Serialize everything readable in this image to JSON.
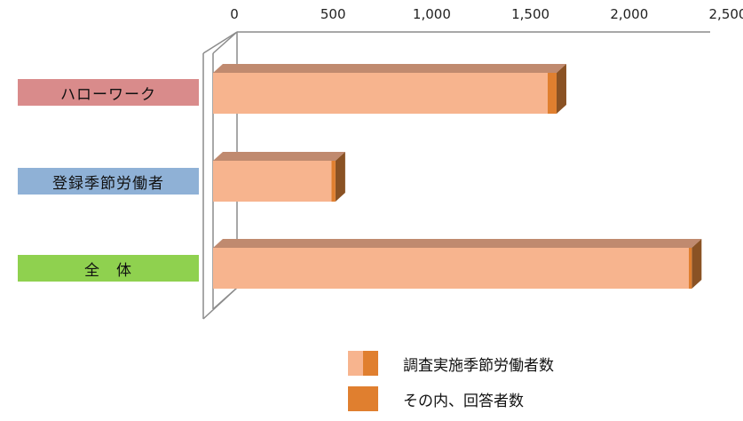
{
  "chart_data": {
    "type": "bar",
    "orientation": "horizontal",
    "style": "3d-overlapped",
    "categories": [
      "ハローワーク",
      "登録季節労働者",
      "全　体"
    ],
    "series": [
      {
        "name": "調査実施季節労働者数",
        "values": [
          1740,
          620,
          2425
        ]
      },
      {
        "name": "その内、回答者数",
        "values": [
          1695,
          600,
          2410
        ]
      }
    ],
    "xlim": [
      0,
      2500
    ],
    "ticks": [
      "0",
      "500",
      "1,000",
      "1,500",
      "2,000",
      "2,500"
    ],
    "tick_values": [
      0,
      500,
      1000,
      1500,
      2000,
      2500
    ],
    "axis_position": "top",
    "grid": false,
    "legend_position": "bottom-center"
  },
  "colors": {
    "category_boxes": [
      "#d98b8b",
      "#8fb1d6",
      "#8fd14f"
    ],
    "series_front": [
      "#f7b48e",
      "#e07f2f"
    ],
    "bar_top": "#c08a6f",
    "bar_side": "#8a5224",
    "axis": "#8c8c8c"
  }
}
